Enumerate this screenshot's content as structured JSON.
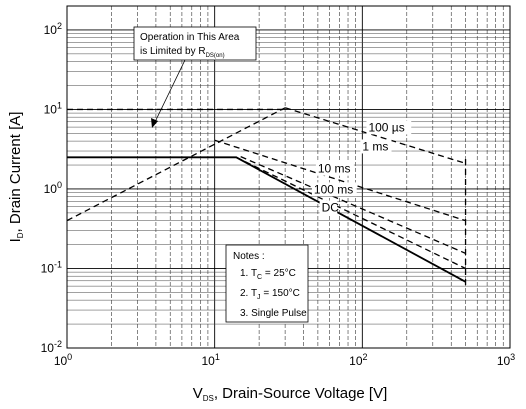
{
  "chart_data": {
    "type": "line",
    "xscale": "log",
    "yscale": "log",
    "xlim": [
      1,
      1000
    ],
    "ylim": [
      0.01,
      200
    ],
    "grid": true,
    "xlabel": {
      "main": "V",
      "sub": "DS",
      "rest": ", Drain-Source Voltage [V]"
    },
    "ylabel": {
      "main": "I",
      "sub": "D",
      "rest": ", Drain Current [A]"
    },
    "x_ticks": [
      {
        "value": 1,
        "base": "10",
        "exp": "0"
      },
      {
        "value": 10,
        "base": "10",
        "exp": "1"
      },
      {
        "value": 100,
        "base": "10",
        "exp": "2"
      },
      {
        "value": 1000,
        "base": "10",
        "exp": "3"
      }
    ],
    "y_ticks": [
      {
        "value": 0.01,
        "base": "10",
        "exp": "-2"
      },
      {
        "value": 0.1,
        "base": "10",
        "exp": "-1"
      },
      {
        "value": 1,
        "base": "10",
        "exp": "0"
      },
      {
        "value": 10,
        "base": "10",
        "exp": "1"
      },
      {
        "value": 100,
        "base": "10",
        "exp": "2"
      }
    ],
    "rds_limit_line": [
      [
        1,
        0.4
      ],
      [
        30,
        10.5
      ]
    ],
    "current_limit_line": [
      [
        1,
        10
      ],
      [
        30,
        10
      ]
    ],
    "vds_limit_line": [
      [
        500,
        0.062
      ],
      [
        500,
        2.5
      ]
    ],
    "series": [
      {
        "name": "100 µs",
        "style": "dashed",
        "points": [
          [
            30,
            10.5
          ],
          [
            500,
            2.1
          ]
        ]
      },
      {
        "name": "1 ms",
        "style": "dashed",
        "points": [
          [
            10,
            4.1
          ],
          [
            500,
            0.4
          ]
        ]
      },
      {
        "name": "10 ms",
        "style": "dashed",
        "points": [
          [
            15,
            2.55
          ],
          [
            500,
            0.155
          ]
        ]
      },
      {
        "name": "100 ms",
        "style": "dashed",
        "points": [
          [
            14,
            2.5
          ],
          [
            500,
            0.1
          ]
        ]
      },
      {
        "name": "DC",
        "style": "solid",
        "points": [
          [
            1,
            2.5
          ],
          [
            14,
            2.5
          ],
          [
            500,
            0.068
          ]
        ]
      }
    ],
    "curve_labels": [
      {
        "text": "100 µs",
        "x": 110,
        "y": 5.3
      },
      {
        "text": "1 ms",
        "x": 100,
        "y": 3.05
      },
      {
        "text": "10 ms",
        "x": 50,
        "y": 1.6
      },
      {
        "text": "100 ms",
        "x": 47,
        "y": 0.88
      },
      {
        "text": "DC",
        "x": 53,
        "y": 0.52
      }
    ],
    "annotation": {
      "lines": [
        "Operation in This Area",
        "is Limited by R"
      ],
      "sub": "DS(on)"
    },
    "notes": {
      "title": "Notes :",
      "items": [
        {
          "prefix": "1. T",
          "sub": "C",
          "suffix": " = 25°C"
        },
        {
          "prefix": "2. T",
          "sub": "J",
          "suffix": " = 150°C"
        },
        {
          "prefix": "3. Single Pulse",
          "sub": "",
          "suffix": ""
        }
      ]
    }
  }
}
